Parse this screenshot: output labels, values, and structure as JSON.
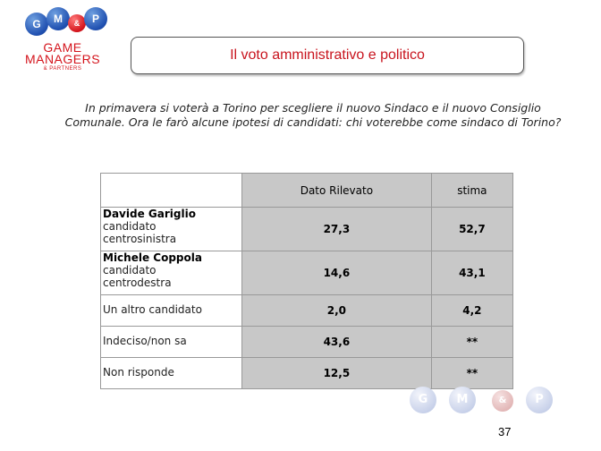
{
  "logo": {
    "balls": [
      "G",
      "M",
      "&",
      "P"
    ],
    "line1": "GAME",
    "line2": "MANAGERS",
    "line3": "& PARTNERS"
  },
  "title": "Il voto amministrativo e politico",
  "question": "In primavera si voterà a Torino per scegliere il nuovo Sindaco e il nuovo Consiglio Comunale. Ora le farò alcune ipotesi di candidati: chi voterebbe come sindaco di Torino?",
  "table": {
    "headers": [
      "Dato Rilevato",
      "stima"
    ],
    "rows": [
      {
        "name": "Davide Gariglio",
        "sub1": "candidato",
        "sub2": "centrosinistra",
        "rilevato": "27,3",
        "stima": "52,7"
      },
      {
        "name": "Michele Coppola",
        "sub1": "candidato",
        "sub2": "centrodestra",
        "rilevato": "14,6",
        "stima": "43,1"
      },
      {
        "label": "Un altro candidato",
        "rilevato": "2,0",
        "stima": "4,2"
      },
      {
        "label": "Indeciso/non sa",
        "rilevato": "43,6",
        "stima": "**"
      },
      {
        "label": "Non risponde",
        "rilevato": "12,5",
        "stima": "**"
      }
    ]
  },
  "footer": {
    "balls": [
      "G",
      "M",
      "&",
      "P"
    ],
    "page_number": "37"
  },
  "colors": {
    "brand_red": "#c8141e",
    "brand_blue": "#1f4fb0",
    "cell_gray": "#c8c8c8"
  }
}
